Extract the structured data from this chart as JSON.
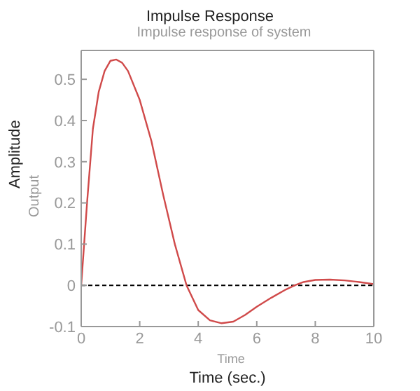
{
  "chart_data": {
    "type": "line",
    "title": "Impulse Response",
    "subtitle": "Impulse response of system",
    "xlabel": "Time (sec.)",
    "ylabel": "Amplitude",
    "annotations": [
      "Output",
      "Time"
    ],
    "x": [
      0,
      0.2,
      0.4,
      0.6,
      0.8,
      1.0,
      1.2,
      1.4,
      1.6,
      2.0,
      2.4,
      2.8,
      3.2,
      3.6,
      4.0,
      4.4,
      4.8,
      5.2,
      5.6,
      6.0,
      6.5,
      7.0,
      7.3,
      7.6,
      8.0,
      8.5,
      9.0,
      9.5,
      10
    ],
    "series": [
      {
        "color": "#d04a4a",
        "values": [
          0,
          0.2,
          0.38,
          0.47,
          0.52,
          0.545,
          0.548,
          0.54,
          0.52,
          0.45,
          0.35,
          0.22,
          0.1,
          0.0,
          -0.06,
          -0.085,
          -0.092,
          -0.088,
          -0.072,
          -0.052,
          -0.03,
          -0.01,
          0,
          0.008,
          0.013,
          0.014,
          0.012,
          0.008,
          0.003
        ]
      }
    ],
    "xlim": [
      0,
      10
    ],
    "xticks": [
      0,
      2,
      4,
      6,
      8,
      10
    ],
    "ylim": [
      -0.1,
      0.57
    ],
    "yticks": [
      -0.1,
      0,
      0.1,
      0.2,
      0.3,
      0.4,
      0.5
    ],
    "ref_lines": [
      {
        "axis": "y",
        "value": 0,
        "color": "#000000",
        "line_style": "dashed"
      }
    ],
    "grid": false,
    "legend": false,
    "marker": "none",
    "line_style": "solid"
  }
}
